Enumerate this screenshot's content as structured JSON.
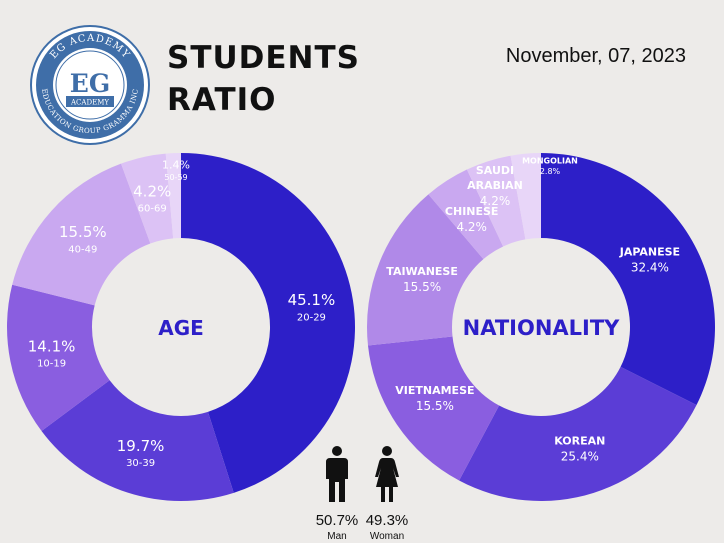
{
  "logo": {
    "initials": "EG",
    "top_text": "EG ACADEMY",
    "banner": "ACADEMY",
    "bottom_text": "EDUCATION GROUP GRAMMA INC"
  },
  "title_line1": "STUDENTS",
  "title_line2": "RATIO",
  "date": "November, 07, 2023",
  "colors": {
    "background": "#edebe9",
    "accent": "#2d1fc8",
    "violet": "#5b3dd6",
    "purple": "#8a5ee0",
    "lavender": "#b089e8",
    "light_lavender": "#c9a8f0",
    "pale_lavender": "#dcc2f5",
    "palest_lavender": "#e8d6f8"
  },
  "gender": {
    "man": {
      "percent": "50.7%",
      "label": "Man",
      "icon": "man-icon"
    },
    "woman": {
      "percent": "49.3%",
      "label": "Woman",
      "icon": "woman-icon"
    }
  },
  "chart_data": [
    {
      "type": "pie",
      "title": "AGE",
      "categories": [
        "20-29",
        "30-39",
        "10-19",
        "40-49",
        "60-69",
        "50-59"
      ],
      "values": [
        45.1,
        19.7,
        14.1,
        15.5,
        4.2,
        1.4
      ],
      "value_labels": [
        "45.1%",
        "19.7%",
        "14.1%",
        "15.5%",
        "4.2%",
        "1.4%"
      ],
      "colors": [
        "#2d1fc8",
        "#5b3dd6",
        "#8a5ee0",
        "#c9a8f0",
        "#dcc2f5",
        "#e8d6f8"
      ]
    },
    {
      "type": "pie",
      "title": "NATIONALITY",
      "categories": [
        "JAPANESE",
        "KOREAN",
        "VIETNAMESE",
        "TAIWANESE",
        "CHINESE",
        "SAUDI ARABIAN",
        "MONGOLIAN"
      ],
      "label_lines": [
        [
          "JAPANESE"
        ],
        [
          "KOREAN"
        ],
        [
          "VIETNAMESE"
        ],
        [
          "TAIWANESE"
        ],
        [
          "CHINESE"
        ],
        [
          "SAUDI",
          "ARABIAN"
        ],
        [
          "MONGOLIAN"
        ]
      ],
      "values": [
        32.4,
        25.4,
        15.5,
        15.5,
        4.2,
        4.2,
        2.8
      ],
      "value_labels": [
        "32.4%",
        "25.4%",
        "15.5%",
        "15.5%",
        "4.2%",
        "4.2%",
        "2.8%"
      ],
      "colors": [
        "#2d1fc8",
        "#5b3dd6",
        "#8a5ee0",
        "#b089e8",
        "#c9a8f0",
        "#dcc2f5",
        "#e8d6f8"
      ]
    }
  ]
}
